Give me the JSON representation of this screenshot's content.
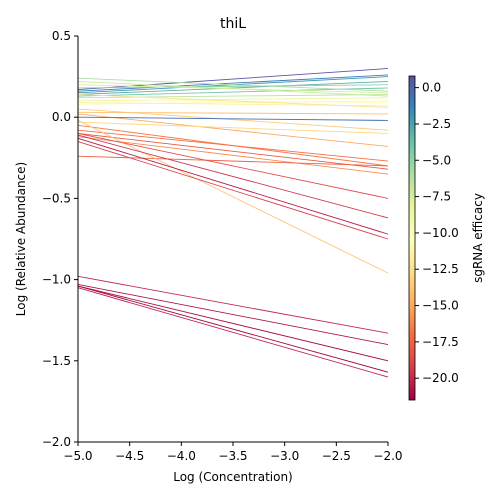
{
  "chart_data": {
    "type": "line",
    "title": "thiL",
    "xlabel": "Log (Concentration)",
    "ylabel": "Log (Relative Abundance)",
    "xlim": [
      -5.0,
      -2.0
    ],
    "ylim": [
      -2.0,
      0.5
    ],
    "x_ticks": [
      -5.0,
      -4.5,
      -4.0,
      -3.5,
      -3.0,
      -2.5,
      -2.0
    ],
    "x_tick_labels": [
      "−5.0",
      "−4.5",
      "−4.0",
      "−3.5",
      "−3.0",
      "−2.5",
      "−2.0"
    ],
    "y_ticks": [
      -2.0,
      -1.5,
      -1.0,
      -0.5,
      0.0,
      0.5
    ],
    "y_tick_labels": [
      "−2.0",
      "−1.5",
      "−1.0",
      "−0.5",
      "0.0",
      "0.5"
    ],
    "grid": false,
    "x": [
      -5.0,
      -2.0
    ],
    "colorbar": {
      "label": "sgRNA efficacy",
      "colormap": "Spectral",
      "range": [
        -21.5,
        0.8
      ],
      "ticks": [
        0.0,
        -2.5,
        -5.0,
        -7.5,
        -10.0,
        -12.5,
        -15.0,
        -17.5,
        -20.0
      ],
      "tick_labels": [
        "0.0",
        "−2.5",
        "−5.0",
        "−7.5",
        "−10.0",
        "−12.5",
        "−15.0",
        "−17.5",
        "−20.0"
      ]
    },
    "series": [
      {
        "values": [
          0.17,
          0.3
        ],
        "efficacy": 0.5
      },
      {
        "values": [
          0.16,
          0.26
        ],
        "efficacy": -1.0
      },
      {
        "values": [
          0.15,
          0.25
        ],
        "efficacy": -2.0
      },
      {
        "values": [
          0.14,
          0.22
        ],
        "efficacy": -3.0
      },
      {
        "values": [
          0.13,
          0.18
        ],
        "efficacy": -4.0
      },
      {
        "values": [
          0.18,
          0.2
        ],
        "efficacy": -5.0
      },
      {
        "values": [
          0.24,
          0.16
        ],
        "efficacy": -6.0
      },
      {
        "values": [
          0.22,
          0.13
        ],
        "efficacy": -7.0
      },
      {
        "values": [
          0.2,
          0.15
        ],
        "efficacy": -7.5
      },
      {
        "values": [
          0.12,
          0.14
        ],
        "efficacy": -6.5
      },
      {
        "values": [
          0.1,
          0.12
        ],
        "efficacy": -8.5
      },
      {
        "values": [
          0.08,
          0.1
        ],
        "efficacy": -9.5
      },
      {
        "values": [
          0.11,
          0.09
        ],
        "efficacy": -10.5
      },
      {
        "values": [
          0.09,
          0.07
        ],
        "efficacy": -11.5
      },
      {
        "values": [
          0.14,
          0.06
        ],
        "efficacy": -12.5
      },
      {
        "values": [
          0.05,
          -0.08
        ],
        "efficacy": -13.5
      },
      {
        "values": [
          0.03,
          0.02
        ],
        "efficacy": -14.0
      },
      {
        "values": [
          0.02,
          -0.18
        ],
        "efficacy": -15.0
      },
      {
        "values": [
          0.0,
          -0.02
        ],
        "efficacy": -0.5
      },
      {
        "values": [
          -0.03,
          -0.1
        ],
        "efficacy": -13.0
      },
      {
        "values": [
          -0.05,
          -0.3
        ],
        "efficacy": -16.5
      },
      {
        "values": [
          -0.08,
          -0.27
        ],
        "efficacy": -17.0
      },
      {
        "values": [
          -0.1,
          -0.32
        ],
        "efficacy": -18.0
      },
      {
        "values": [
          -0.12,
          -0.35
        ],
        "efficacy": -16.0
      },
      {
        "values": [
          -0.24,
          -0.3
        ],
        "efficacy": -17.5
      },
      {
        "values": [
          -0.02,
          -0.96
        ],
        "efficacy": -13.8
      },
      {
        "values": [
          -0.1,
          -0.5
        ],
        "efficacy": -18.5
      },
      {
        "values": [
          -0.11,
          -0.62
        ],
        "efficacy": -19.5
      },
      {
        "values": [
          -0.13,
          -0.72
        ],
        "efficacy": -20.5
      },
      {
        "values": [
          -0.15,
          -0.75
        ],
        "efficacy": -19.0
      },
      {
        "values": [
          -0.98,
          -1.33
        ],
        "efficacy": -20.0
      },
      {
        "values": [
          -1.03,
          -1.4
        ],
        "efficacy": -20.8
      },
      {
        "values": [
          -1.04,
          -1.5
        ],
        "efficacy": -21.0
      },
      {
        "values": [
          -1.04,
          -1.57
        ],
        "efficacy": -21.3
      },
      {
        "values": [
          -1.05,
          -1.6
        ],
        "efficacy": -20.3
      }
    ]
  }
}
